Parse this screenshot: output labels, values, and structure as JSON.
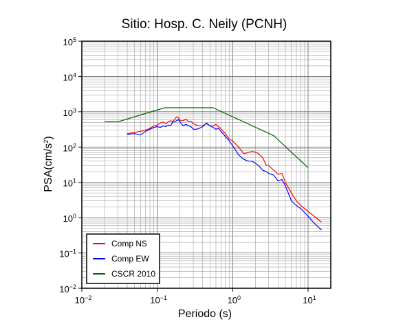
{
  "chart_data": {
    "type": "line",
    "title": "Sitio: Hosp. C. Neily (PCNH)",
    "xlabel": "Periodo (s)",
    "ylabel_base": "PSA(cm/s",
    "ylabel_exp": "2",
    "ylabel_close": ")",
    "xscale": "log",
    "yscale": "log",
    "xlim": [
      0.01,
      20
    ],
    "ylim": [
      0.01,
      100000
    ],
    "grid": true,
    "legend_position": "bottom-left",
    "x_ticks": [
      {
        "value": 0.01,
        "base": "10",
        "exp": "−2"
      },
      {
        "value": 0.1,
        "base": "10",
        "exp": "−1"
      },
      {
        "value": 1,
        "base": "10",
        "exp": "0"
      },
      {
        "value": 10,
        "base": "10",
        "exp": "1"
      }
    ],
    "y_ticks": [
      {
        "value": 0.01,
        "base": "10",
        "exp": "−2"
      },
      {
        "value": 0.1,
        "base": "10",
        "exp": "−1"
      },
      {
        "value": 1,
        "base": "10",
        "exp": "0"
      },
      {
        "value": 10,
        "base": "10",
        "exp": "1"
      },
      {
        "value": 100,
        "base": "10",
        "exp": "2"
      },
      {
        "value": 1000,
        "base": "10",
        "exp": "3"
      },
      {
        "value": 10000,
        "base": "10",
        "exp": "4"
      },
      {
        "value": 100000,
        "base": "10",
        "exp": "5"
      }
    ],
    "series": [
      {
        "name": "Comp NS",
        "color": "#ff0000",
        "x": [
          0.04,
          0.05,
          0.06,
          0.07,
          0.08,
          0.09,
          0.1,
          0.11,
          0.12,
          0.13,
          0.14,
          0.15,
          0.16,
          0.17,
          0.18,
          0.19,
          0.2,
          0.22,
          0.24,
          0.26,
          0.28,
          0.3,
          0.33,
          0.36,
          0.4,
          0.45,
          0.5,
          0.55,
          0.6,
          0.65,
          0.7,
          0.8,
          0.9,
          1.0,
          1.1,
          1.2,
          1.4,
          1.6,
          1.8,
          2.0,
          2.2,
          2.5,
          2.8,
          3.0,
          3.5,
          4.0,
          4.5,
          5.0,
          6.0,
          7.0,
          8.0,
          10.0,
          12.0,
          15.0
        ],
        "y": [
          240,
          260,
          280,
          300,
          340,
          400,
          420,
          480,
          520,
          450,
          520,
          560,
          520,
          600,
          720,
          700,
          560,
          560,
          620,
          520,
          540,
          460,
          420,
          400,
          400,
          460,
          400,
          400,
          440,
          380,
          330,
          240,
          170,
          150,
          120,
          100,
          65,
          70,
          75,
          72,
          65,
          50,
          30,
          30,
          22,
          17,
          18,
          10,
          5,
          3.0,
          2.2,
          1.5,
          1.1,
          0.75
        ]
      },
      {
        "name": "Comp EW",
        "color": "#0000ff",
        "x": [
          0.04,
          0.05,
          0.06,
          0.07,
          0.08,
          0.09,
          0.1,
          0.11,
          0.12,
          0.13,
          0.14,
          0.15,
          0.16,
          0.17,
          0.18,
          0.19,
          0.2,
          0.22,
          0.24,
          0.26,
          0.28,
          0.3,
          0.33,
          0.36,
          0.4,
          0.45,
          0.5,
          0.55,
          0.6,
          0.65,
          0.7,
          0.8,
          0.9,
          1.0,
          1.1,
          1.2,
          1.4,
          1.6,
          1.8,
          2.0,
          2.2,
          2.5,
          2.8,
          3.0,
          3.5,
          4.0,
          4.5,
          5.0,
          6.0,
          7.0,
          8.0,
          10.0,
          12.0,
          15.0
        ],
        "y": [
          230,
          240,
          220,
          280,
          320,
          360,
          380,
          360,
          400,
          380,
          420,
          400,
          500,
          520,
          560,
          600,
          520,
          400,
          440,
          400,
          380,
          320,
          320,
          340,
          380,
          480,
          400,
          360,
          320,
          340,
          280,
          200,
          150,
          110,
          80,
          60,
          45,
          40,
          40,
          35,
          30,
          22,
          20,
          18,
          16,
          11,
          12,
          8,
          3.0,
          2.2,
          1.8,
          1.1,
          0.7,
          0.45
        ]
      },
      {
        "name": "CSCR 2010",
        "color": "#006400",
        "x": [
          0.02,
          0.03,
          0.125,
          0.55,
          3.5,
          10
        ],
        "y": [
          520,
          520,
          1300,
          1300,
          210,
          26
        ]
      }
    ]
  }
}
